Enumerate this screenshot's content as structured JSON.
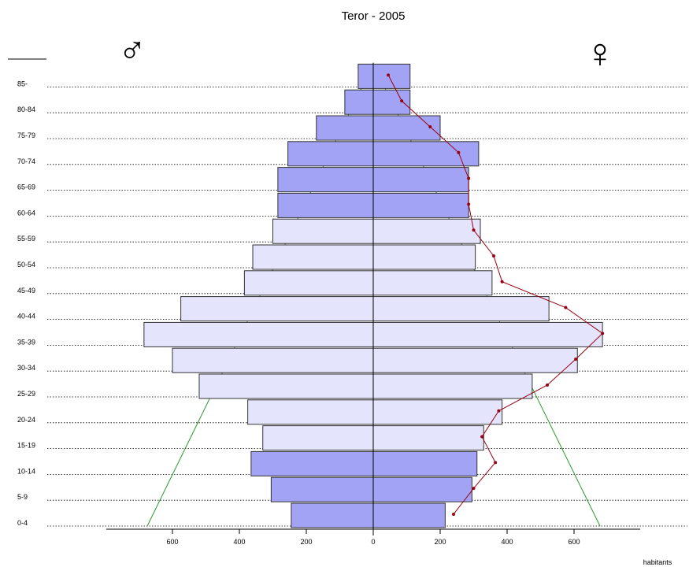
{
  "chart_data": {
    "type": "bar",
    "title": "Teror - 2005",
    "male_symbol": "♂",
    "female_symbol": "♀",
    "xlabel": "habitants",
    "categories": [
      "0-4",
      "5-9",
      "10-14",
      "15-19",
      "20-24",
      "25-29",
      "30-34",
      "35-39",
      "40-44",
      "45-49",
      "50-54",
      "55-59",
      "60-64",
      "65-69",
      "70-74",
      "75-79",
      "80-84",
      "85-"
    ],
    "series": [
      {
        "side": "male",
        "values": [
          245,
          305,
          365,
          330,
          375,
          520,
          600,
          685,
          575,
          385,
          360,
          300,
          285,
          285,
          255,
          170,
          85,
          45
        ]
      },
      {
        "side": "female",
        "values": [
          215,
          295,
          310,
          330,
          385,
          475,
          610,
          685,
          525,
          355,
          305,
          320,
          285,
          285,
          315,
          200,
          110,
          110
        ]
      },
      {
        "side": "female",
        "values": [
          240,
          300,
          365,
          325,
          375,
          520,
          605,
          685,
          575,
          385,
          360,
          300,
          285,
          285,
          255,
          170,
          85,
          45
        ]
      }
    ],
    "xlim": [
      -800,
      800
    ],
    "x_ticks": [
      600,
      400,
      200,
      0,
      200,
      400,
      600
    ],
    "colors": {
      "bar_dark": "#a3a3f6",
      "bar_light": "#e4e4fc",
      "line": "#990011",
      "guide": "#2a9a2a"
    }
  }
}
